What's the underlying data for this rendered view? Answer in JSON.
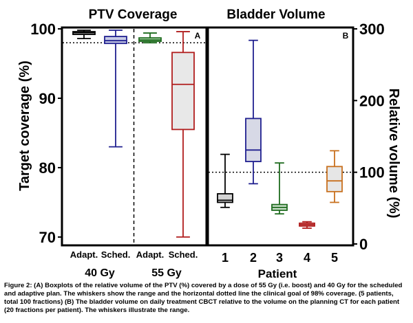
{
  "caption": "Figure 2: (A) Boxplots of the relative volume of the PTV (%) covered by a dose of 55 Gy (i.e. boost) and 40 Gy for the scheduled and adaptive plan. The whiskers show the range and the horizontal dotted line the clinical goal of 98% coverage. (5 patients, total 100 fractions) (B) The bladder volume on daily treatment CBCT relative to the volume on the planning CT for each patient (20 fractions per patient). The whiskers illustrate the range.",
  "chart_data": [
    {
      "type": "box",
      "panel": "A",
      "title": "PTV Coverage",
      "ylabel": "Target coverage (%)",
      "ylim": [
        69,
        100
      ],
      "yticks": [
        70,
        80,
        90,
        100
      ],
      "reference_line": 98,
      "categories": [
        "Adapt.",
        "Sched.",
        "Adapt.",
        "Sched."
      ],
      "groups": [
        {
          "label": "40 Gy",
          "span": [
            0,
            1
          ]
        },
        {
          "label": "55 Gy",
          "span": [
            2,
            3
          ]
        }
      ],
      "boxes": [
        {
          "category": "Adapt.",
          "group": "40 Gy",
          "min": 98.6,
          "q1": 99.2,
          "median": 99.45,
          "q3": 99.6,
          "max": 99.8,
          "color": "#000000",
          "fill": "#d9d9d9"
        },
        {
          "category": "Sched.",
          "group": "40 Gy",
          "min": 83.0,
          "q1": 97.9,
          "median": 98.3,
          "q3": 98.9,
          "max": 99.8,
          "color": "#1f1f8f",
          "fill": "#c7cbe6"
        },
        {
          "category": "Adapt.",
          "group": "55 Gy",
          "min": 98.0,
          "q1": 98.2,
          "median": 98.4,
          "q3": 98.7,
          "max": 99.4,
          "color": "#1e6b1e",
          "fill": "#b9dcb9"
        },
        {
          "category": "Sched.",
          "group": "55 Gy",
          "min": 70.0,
          "q1": 85.5,
          "median": 92.0,
          "q3": 96.6,
          "max": 99.6,
          "color": "#b01c1c",
          "fill": "#e8e8e8"
        }
      ]
    },
    {
      "type": "box",
      "panel": "B",
      "title": "Bladder Volume",
      "xlabel": "Patient",
      "ylabel": "Relative volume (%)",
      "ylim": [
        0,
        300
      ],
      "yticks": [
        0,
        100,
        200,
        300
      ],
      "reference_line": 100,
      "categories": [
        "1",
        "2",
        "3",
        "4",
        "5"
      ],
      "boxes": [
        {
          "category": "1",
          "min": 51,
          "q1": 58,
          "median": 61,
          "q3": 70,
          "max": 125,
          "color": "#000000",
          "fill": "#d3d3d3"
        },
        {
          "category": "2",
          "min": 84,
          "q1": 115,
          "median": 131,
          "q3": 175,
          "max": 284,
          "color": "#1f1f8f",
          "fill": "#d7d9e6"
        },
        {
          "category": "3",
          "min": 42,
          "q1": 47,
          "median": 51,
          "q3": 55,
          "max": 113,
          "color": "#1e6b1e",
          "fill": "#cfe3cf"
        },
        {
          "category": "4",
          "min": 22,
          "q1": 25,
          "median": 27,
          "q3": 29,
          "max": 31,
          "color": "#b01c1c",
          "fill": "#efcccc"
        },
        {
          "category": "5",
          "min": 58,
          "q1": 73,
          "median": 88,
          "q3": 108,
          "max": 130,
          "color": "#c8701e",
          "fill": "#e6e6e6"
        }
      ]
    }
  ]
}
